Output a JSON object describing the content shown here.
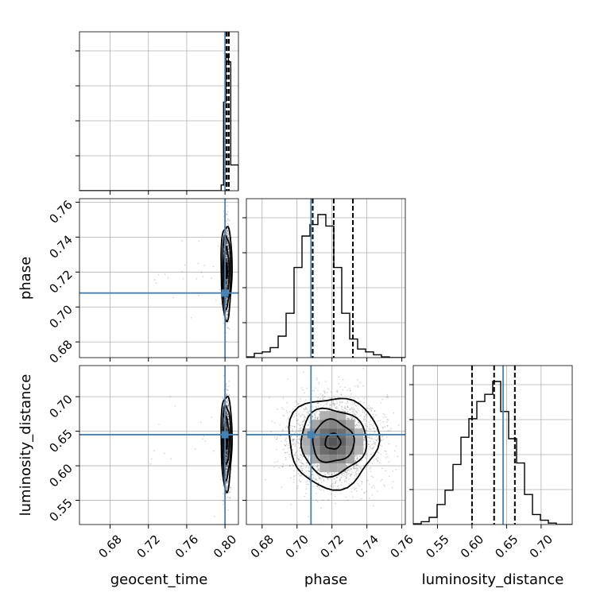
{
  "chart_data": {
    "type": "corner",
    "parameters": [
      "geocent_time",
      "phase",
      "luminosity_distance"
    ],
    "truth_color": "#4682b4",
    "truths": {
      "geocent_time": 0.8,
      "phase": 0.708,
      "luminosity_distance": 0.645
    },
    "axis_ranges": {
      "geocent_time": [
        0.648,
        0.814
      ],
      "phase": [
        0.671,
        0.762
      ],
      "luminosity_distance": [
        0.515,
        0.745
      ]
    },
    "ticks": {
      "geocent_time": {
        "values": [
          0.68,
          0.72,
          0.76,
          0.8
        ],
        "labels": [
          "0.68",
          "0.72",
          "0.76",
          "0.80"
        ]
      },
      "phase": {
        "values": [
          0.68,
          0.7,
          0.72,
          0.74,
          0.76
        ],
        "labels": [
          "0.68",
          "0.70",
          "0.72",
          "0.74",
          "0.76"
        ]
      },
      "luminosity_distance": {
        "values": [
          0.55,
          0.6,
          0.65,
          0.7
        ],
        "labels": [
          "0.55",
          "0.60",
          "0.65",
          "0.70"
        ]
      }
    },
    "histograms": {
      "geocent_time": {
        "edges": [
          0.648,
          0.796,
          0.7985,
          0.801,
          0.8035,
          0.806,
          0.8085,
          0.814
        ],
        "counts": [
          0,
          0.04,
          0.62,
          0.95,
          0.9,
          0.18,
          0.18
        ],
        "quantiles": [
          0.8005,
          0.802,
          0.804
        ]
      },
      "phase": {
        "bins_start": 0.671,
        "bin_width": 0.00455,
        "counts": [
          0.005,
          0.03,
          0.04,
          0.07,
          0.15,
          0.31,
          0.63,
          0.85,
          0.93,
          1.0,
          0.92,
          0.63,
          0.31,
          0.13,
          0.06,
          0.04,
          0.02,
          0.005,
          0,
          0
        ],
        "quantiles": [
          0.709,
          0.721,
          0.732
        ]
      },
      "luminosity_distance": {
        "bins_start": 0.515,
        "bin_width": 0.0115,
        "counts": [
          0.005,
          0.02,
          0.05,
          0.14,
          0.24,
          0.42,
          0.61,
          0.74,
          0.86,
          0.91,
          1.0,
          0.79,
          0.6,
          0.43,
          0.21,
          0.07,
          0.03,
          0.01,
          0,
          0
        ],
        "quantiles": [
          0.6,
          0.632,
          0.662
        ]
      }
    },
    "grid": true
  }
}
